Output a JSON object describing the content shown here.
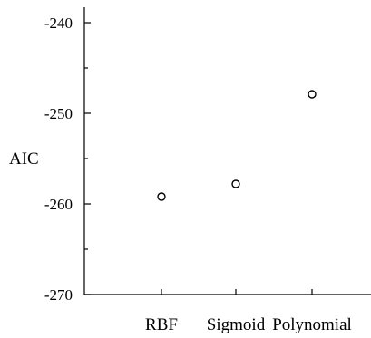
{
  "chart_data": {
    "type": "scatter",
    "ylabel": "AIC",
    "xlabel": "",
    "title": "",
    "categories": [
      "RBF",
      "Sigmoid",
      "Polynomial"
    ],
    "series": [
      {
        "values": [
          -259.2,
          -257.8,
          -247.9
        ]
      }
    ],
    "ylim": [
      -270,
      -238
    ],
    "yticks_major": [
      -240,
      -250,
      -260,
      -270
    ],
    "yticks_minor": [
      -245,
      -255,
      -265
    ],
    "ytick_labels": [
      "-240",
      "-250",
      "-260",
      "-270"
    ],
    "grid": false,
    "legend": "none",
    "marker": "open-circle",
    "colors": {
      "axis": "#000000",
      "marker_stroke": "#000000",
      "marker_fill": "#ffffff"
    }
  }
}
